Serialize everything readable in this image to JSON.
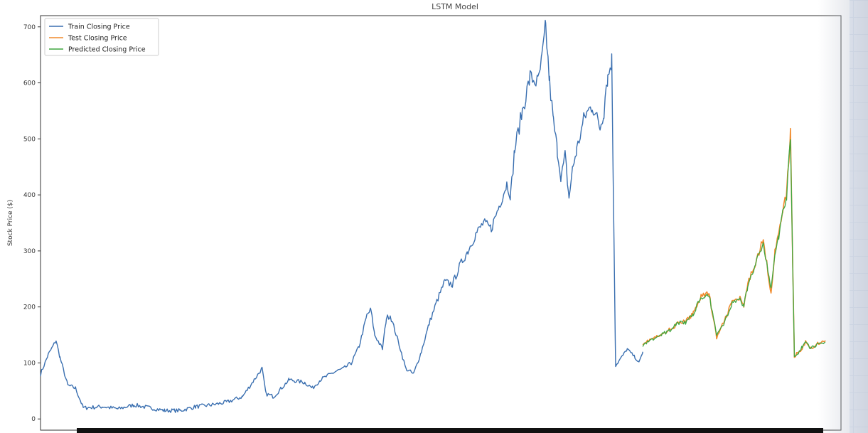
{
  "chart_data": {
    "type": "line",
    "title": "LSTM Model",
    "xlabel": "",
    "ylabel": "Stock Price ($)",
    "ylim": [
      -20,
      720
    ],
    "yticks": [
      0,
      100,
      200,
      300,
      400,
      500,
      600,
      700
    ],
    "grid": false,
    "legend_position": "top-left",
    "n_points": 1200,
    "series": [
      {
        "name": "Train Closing Price",
        "color": "#3a6fb0",
        "x": [
          0,
          10,
          20,
          25,
          35,
          45,
          55,
          60,
          80,
          100,
          120,
          140,
          160,
          180,
          200,
          220,
          240,
          260,
          275,
          285,
          290,
          300,
          320,
          340,
          350,
          360,
          380,
          390,
          400,
          410,
          420,
          425,
          430,
          440,
          445,
          450,
          460,
          470,
          480,
          490,
          500,
          510,
          520,
          530,
          540,
          550,
          560,
          570,
          580,
          590,
          600,
          605,
          610,
          620,
          630,
          640,
          645,
          650,
          655,
          660,
          665,
          670,
          675,
          680,
          685,
          690,
          700,
          710,
          720,
          725,
          728,
          730,
          735,
          740
        ],
        "y": [
          80,
          115,
          140,
          110,
          60,
          55,
          20,
          20,
          22,
          18,
          25,
          20,
          15,
          15,
          22,
          25,
          30,
          40,
          70,
          90,
          45,
          40,
          70,
          65,
          55,
          70,
          85,
          90,
          100,
          130,
          185,
          195,
          150,
          125,
          180,
          185,
          140,
          90,
          80,
          120,
          170,
          210,
          245,
          240,
          275,
          300,
          330,
          350,
          340,
          380,
          420,
          400,
          480,
          550,
          610,
          600,
          640,
          700,
          600,
          530,
          480,
          430,
          470,
          395,
          450,
          480,
          540,
          560,
          520,
          550,
          600,
          610,
          640,
          95
        ]
      },
      {
        "name": "Test Closing Price",
        "color": "#f08a2c",
        "x": [
          775,
          790,
          800,
          810,
          820,
          830,
          835,
          840,
          850,
          860,
          870,
          880,
          890,
          900,
          905,
          910,
          920,
          930,
          940,
          945,
          950,
          955,
          960,
          965,
          970,
          975,
          980,
          985,
          990,
          1000,
          1010
        ],
        "y": [
          135,
          145,
          150,
          160,
          170,
          175,
          180,
          190,
          220,
          225,
          145,
          175,
          210,
          215,
          200,
          240,
          280,
          320,
          225,
          300,
          330,
          375,
          400,
          510,
          110,
          120,
          125,
          140,
          125,
          135,
          140
        ]
      },
      {
        "name": "Predicted Closing Price",
        "color": "#3fa63f",
        "x": [
          775,
          790,
          800,
          810,
          820,
          830,
          835,
          840,
          850,
          860,
          870,
          880,
          890,
          900,
          905,
          910,
          920,
          930,
          940,
          945,
          950,
          955,
          960,
          965,
          970,
          975,
          980,
          985,
          990,
          1000,
          1010
        ],
        "y": [
          132,
          143,
          152,
          158,
          172,
          172,
          182,
          188,
          218,
          222,
          150,
          172,
          206,
          212,
          203,
          236,
          276,
          316,
          230,
          296,
          326,
          370,
          396,
          505,
          112,
          118,
          128,
          136,
          128,
          132,
          137
        ]
      }
    ],
    "train_tail": {
      "x": [
        740,
        745,
        755,
        765,
        770,
        775
      ],
      "y": [
        95,
        105,
        125,
        110,
        100,
        120
      ]
    }
  }
}
